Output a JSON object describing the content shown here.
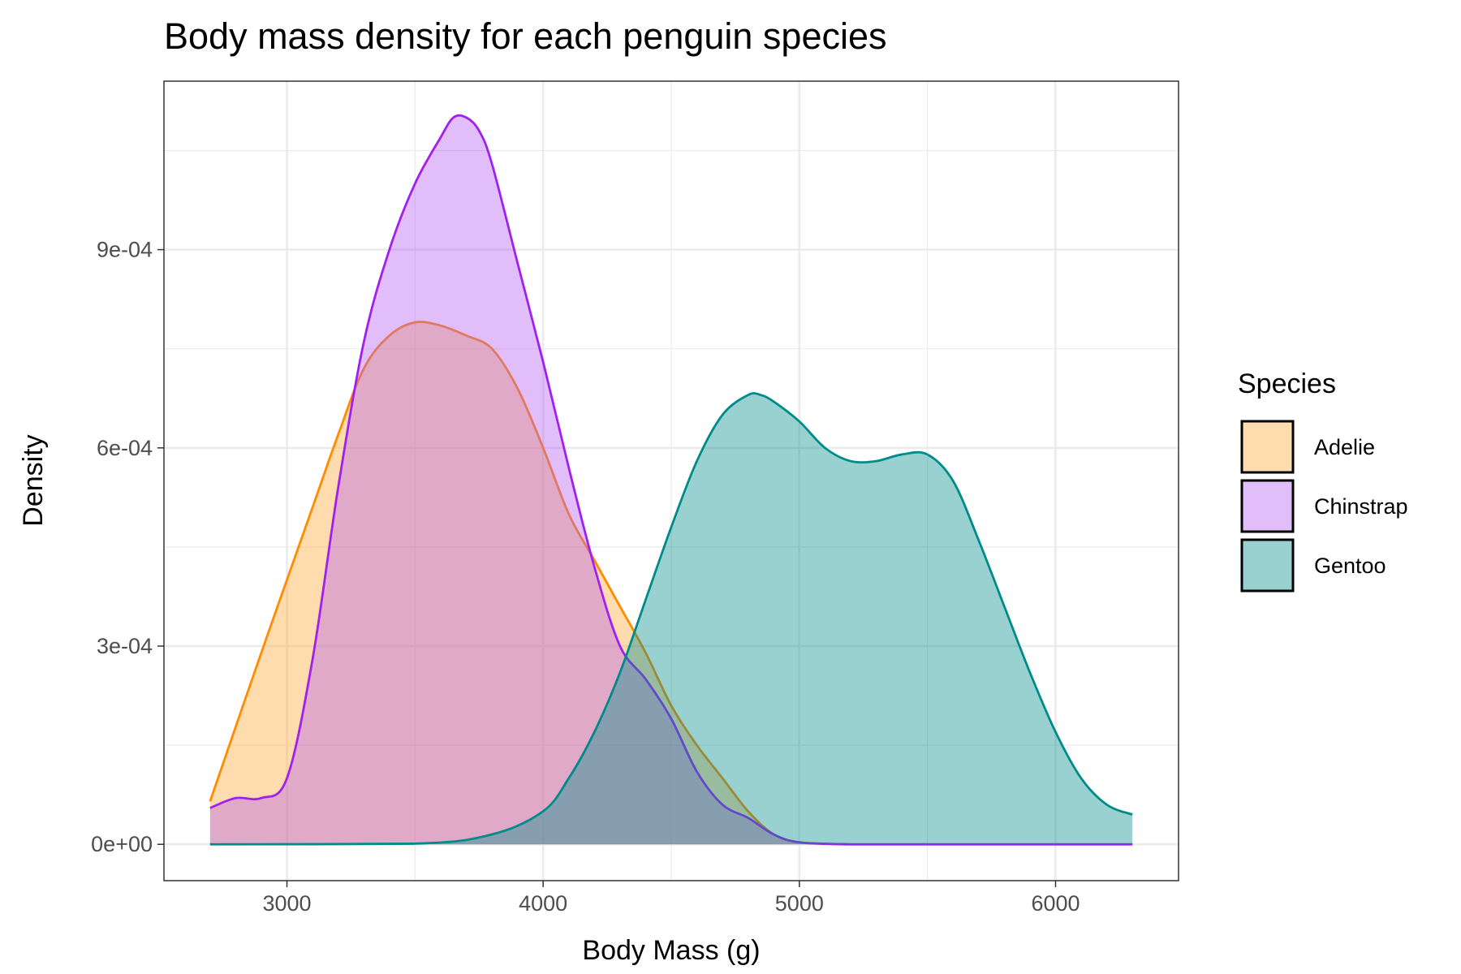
{
  "chart_data": {
    "type": "area",
    "title": "Body mass density for each penguin species",
    "xlabel": "Body Mass (g)",
    "ylabel": "Density",
    "xlim": [
      2520,
      6480
    ],
    "ylim": [
      -5.5e-05,
      0.001155
    ],
    "x_ticks": [
      3000,
      4000,
      5000,
      6000
    ],
    "x_tick_labels": [
      "3000",
      "4000",
      "5000",
      "6000"
    ],
    "y_ticks": [
      0,
      0.0003,
      0.0006,
      0.0009
    ],
    "y_tick_labels": [
      "0e+00",
      "3e-04",
      "6e-04",
      "9e-04"
    ],
    "grid": true,
    "legend": {
      "title": "Species",
      "position": "right"
    },
    "series": [
      {
        "name": "Adelie",
        "fill": "#ffa732",
        "stroke": "#ff8c00",
        "x": [
          2700,
          2900,
          3100,
          3200,
          3300,
          3400,
          3500,
          3600,
          3700,
          3800,
          3900,
          4000,
          4100,
          4200,
          4300,
          4400,
          4500,
          4600,
          4700,
          4800,
          4900,
          5000,
          5100,
          5200,
          5500,
          6000,
          6300
        ],
        "y": [
          6.5e-05,
          0.00029,
          0.00051,
          0.00062,
          0.00072,
          0.00077,
          0.00079,
          0.000785,
          0.00077,
          0.00075,
          0.00069,
          0.0006,
          0.0005,
          0.00043,
          0.00036,
          0.00029,
          0.00021,
          0.00015,
          0.0001,
          5e-05,
          1.5e-05,
          3e-06,
          1e-06,
          0,
          0,
          0,
          0
        ]
      },
      {
        "name": "Chinstrap",
        "fill": "#b45df0",
        "stroke": "#a020f0",
        "x": [
          2700,
          2800,
          2900,
          3000,
          3100,
          3200,
          3300,
          3400,
          3500,
          3600,
          3650,
          3700,
          3750,
          3800,
          3900,
          4000,
          4100,
          4200,
          4300,
          4400,
          4500,
          4600,
          4700,
          4800,
          4900,
          5000,
          5200,
          5500,
          6000,
          6300
        ],
        "y": [
          5.5e-05,
          7e-05,
          7e-05,
          0.0001,
          0.00028,
          0.00054,
          0.00076,
          0.0009,
          0.001,
          0.00107,
          0.0011,
          0.0011,
          0.00108,
          0.00103,
          0.00088,
          0.00073,
          0.00057,
          0.00042,
          0.0003,
          0.00025,
          0.00019,
          0.00011,
          6e-05,
          4e-05,
          1.5e-05,
          3e-06,
          0,
          0,
          0,
          0
        ]
      },
      {
        "name": "Gentoo",
        "fill": "#008b8b",
        "stroke": "#008b8b",
        "x": [
          2700,
          3500,
          3800,
          4000,
          4100,
          4200,
          4300,
          4400,
          4500,
          4600,
          4700,
          4800,
          4850,
          4900,
          5000,
          5100,
          5200,
          5300,
          5400,
          5500,
          5600,
          5700,
          5800,
          5900,
          6000,
          6100,
          6200,
          6300
        ],
        "y": [
          0,
          1e-06,
          1.5e-05,
          5e-05,
          0.0001,
          0.00017,
          0.00026,
          0.00037,
          0.00048,
          0.00058,
          0.00065,
          0.00068,
          0.00068,
          0.00067,
          0.00064,
          0.0006,
          0.00058,
          0.00058,
          0.00059,
          0.00059,
          0.00055,
          0.00046,
          0.00036,
          0.00026,
          0.00017,
          0.0001,
          6e-05,
          4.5e-05
        ]
      }
    ]
  }
}
